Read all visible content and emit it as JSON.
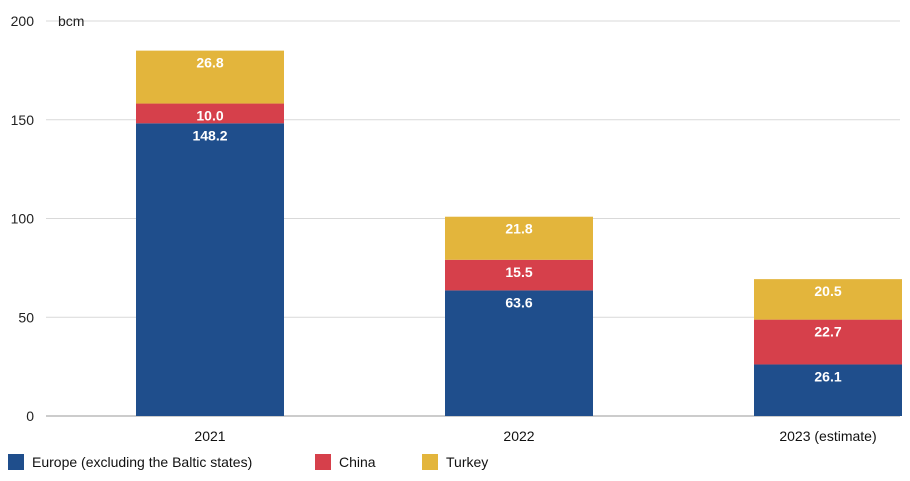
{
  "chart_data": {
    "type": "bar",
    "stacked": true,
    "categories": [
      "2021",
      "2022",
      "2023 (estimate)"
    ],
    "series": [
      {
        "name": "Europe (excluding the Baltic states)",
        "color": "#1f4e8c",
        "values": [
          148.2,
          63.6,
          26.1
        ]
      },
      {
        "name": "China",
        "color": "#d6404b",
        "values": [
          10.0,
          15.5,
          22.7
        ]
      },
      {
        "name": "Turkey",
        "color": "#e3b53c",
        "values": [
          26.8,
          21.8,
          20.5
        ]
      }
    ],
    "data_labels": [
      [
        "148.2",
        "63.6",
        "26.1"
      ],
      [
        "10.0",
        "15.5",
        "22.7"
      ],
      [
        "26.8",
        "21.8",
        "20.5"
      ]
    ],
    "yticks": [
      0,
      50,
      100,
      150,
      200
    ],
    "ytick_labels": [
      "0",
      "50",
      "100",
      "150",
      "200"
    ],
    "ylim": [
      0,
      200
    ],
    "unit": "bcm",
    "grid": true,
    "legend_position": "bottom-left"
  }
}
